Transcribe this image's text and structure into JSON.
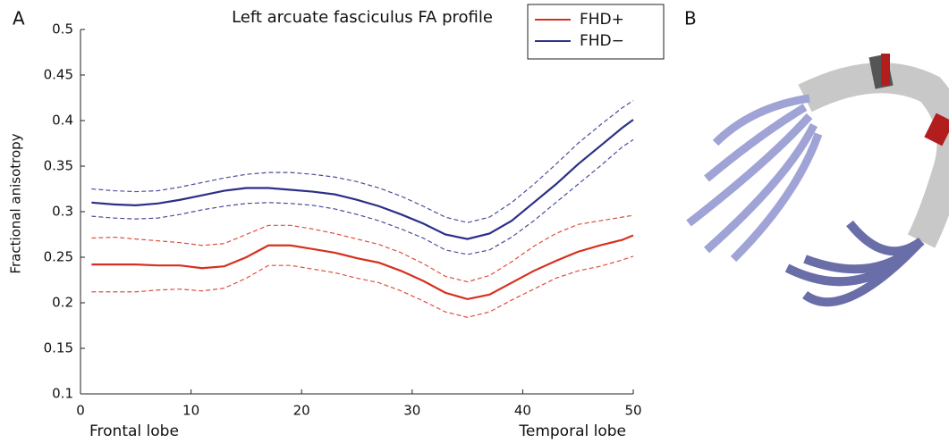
{
  "chart_data": {
    "type": "line",
    "title": "Left arcuate fasciculus FA profile",
    "ylabel": "Fractional anisotropy",
    "annotations": {
      "panel_a": "A",
      "panel_b": "B",
      "x_start": "Frontal lobe",
      "x_end": "Temporal lobe"
    },
    "x": [
      1,
      3,
      5,
      7,
      9,
      11,
      13,
      15,
      17,
      19,
      21,
      23,
      25,
      27,
      29,
      31,
      33,
      35,
      37,
      39,
      41,
      43,
      45,
      47,
      49,
      50
    ],
    "series": [
      {
        "name": "FHD+",
        "color": "#d7301f",
        "values": [
          0.242,
          0.242,
          0.242,
          0.241,
          0.241,
          0.238,
          0.24,
          0.25,
          0.263,
          0.263,
          0.259,
          0.255,
          0.249,
          0.244,
          0.235,
          0.224,
          0.211,
          0.204,
          0.209,
          0.222,
          0.235,
          0.246,
          0.256,
          0.263,
          0.269,
          0.274
        ],
        "upper": [
          0.271,
          0.272,
          0.27,
          0.268,
          0.266,
          0.263,
          0.265,
          0.275,
          0.285,
          0.285,
          0.281,
          0.276,
          0.27,
          0.264,
          0.255,
          0.243,
          0.229,
          0.223,
          0.23,
          0.245,
          0.262,
          0.276,
          0.286,
          0.29,
          0.294,
          0.296
        ],
        "lower": [
          0.212,
          0.212,
          0.212,
          0.214,
          0.215,
          0.213,
          0.216,
          0.227,
          0.241,
          0.241,
          0.237,
          0.233,
          0.227,
          0.222,
          0.213,
          0.202,
          0.19,
          0.184,
          0.19,
          0.203,
          0.215,
          0.227,
          0.235,
          0.24,
          0.247,
          0.251
        ]
      },
      {
        "name": "FHD−",
        "color": "#2b2f86",
        "values": [
          0.31,
          0.308,
          0.307,
          0.309,
          0.313,
          0.318,
          0.323,
          0.326,
          0.326,
          0.324,
          0.322,
          0.319,
          0.313,
          0.306,
          0.297,
          0.287,
          0.275,
          0.27,
          0.276,
          0.29,
          0.31,
          0.33,
          0.352,
          0.372,
          0.392,
          0.401
        ],
        "upper": [
          0.325,
          0.323,
          0.322,
          0.323,
          0.327,
          0.332,
          0.337,
          0.341,
          0.343,
          0.343,
          0.341,
          0.338,
          0.333,
          0.326,
          0.317,
          0.306,
          0.294,
          0.288,
          0.294,
          0.31,
          0.33,
          0.352,
          0.375,
          0.395,
          0.414,
          0.422
        ],
        "lower": [
          0.295,
          0.293,
          0.292,
          0.293,
          0.297,
          0.302,
          0.306,
          0.309,
          0.31,
          0.309,
          0.307,
          0.303,
          0.297,
          0.29,
          0.281,
          0.271,
          0.258,
          0.253,
          0.258,
          0.272,
          0.29,
          0.31,
          0.33,
          0.35,
          0.371,
          0.379
        ]
      }
    ],
    "xlim": [
      0,
      50
    ],
    "xticks": [
      0,
      10,
      20,
      30,
      40,
      50
    ],
    "ylim": [
      0.1,
      0.5
    ],
    "yticks": [
      0.1,
      0.15,
      0.2,
      0.25,
      0.3,
      0.35,
      0.4,
      0.45,
      0.5
    ],
    "legend": "upper-right"
  }
}
